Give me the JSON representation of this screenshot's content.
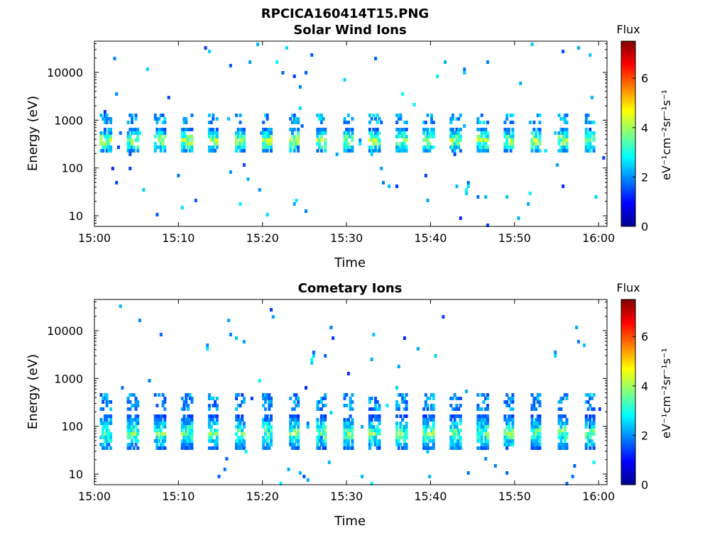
{
  "figure_title": "RPCICA160414T15.PNG",
  "colorbar_colors": [
    "#00008f",
    "#0000ff",
    "#0080ff",
    "#00ffff",
    "#80ff80",
    "#ffff00",
    "#ff8000",
    "#ff0000",
    "#800000"
  ],
  "chart_data": [
    {
      "type": "heatmap",
      "title": "Solar Wind Ions",
      "xlabel": "Time",
      "ylabel": "Energy (eV)",
      "x_range": [
        "15:00",
        "16:01"
      ],
      "x_ticks": [
        "15:00",
        "15:10",
        "15:20",
        "15:30",
        "15:40",
        "15:50",
        "16:00"
      ],
      "y_scale": "log",
      "y_range": [
        6,
        45000
      ],
      "y_ticks": [
        "10",
        "100",
        "1000",
        "10000"
      ],
      "colorbar": {
        "title": "Flux",
        "label": "eV⁻¹cm⁻²sr⁻¹s⁻¹",
        "range": [
          0,
          7.5
        ],
        "ticks": [
          "0",
          "2",
          "4",
          "6"
        ]
      },
      "pattern": {
        "burst_period_min": 3.2,
        "main_band_eV": [
          250,
          650
        ],
        "main_band_peak_flux": 4.5,
        "upper_band_eV": [
          1200,
          1600
        ],
        "upper_band_flux": 2.5
      }
    },
    {
      "type": "heatmap",
      "title": "Cometary Ions",
      "xlabel": "Time",
      "ylabel": "Energy (eV)",
      "x_range": [
        "15:00",
        "16:01"
      ],
      "x_ticks": [
        "15:00",
        "15:10",
        "15:20",
        "15:30",
        "15:40",
        "15:50",
        "16:00"
      ],
      "y_scale": "log",
      "y_range": [
        6,
        45000
      ],
      "y_ticks": [
        "10",
        "100",
        "1000",
        "10000"
      ],
      "colorbar": {
        "title": "Flux",
        "label": "eV⁻¹cm⁻²sr⁻¹s⁻¹",
        "range": [
          0,
          7.5
        ],
        "ticks": [
          "0",
          "2",
          "4",
          "6"
        ]
      },
      "pattern": {
        "burst_period_min": 3.2,
        "main_band_eV": [
          40,
          150
        ],
        "main_band_peak_flux": 4,
        "upper_band_eV": [
          300,
          550
        ],
        "upper_band_flux": 2.3
      }
    }
  ]
}
